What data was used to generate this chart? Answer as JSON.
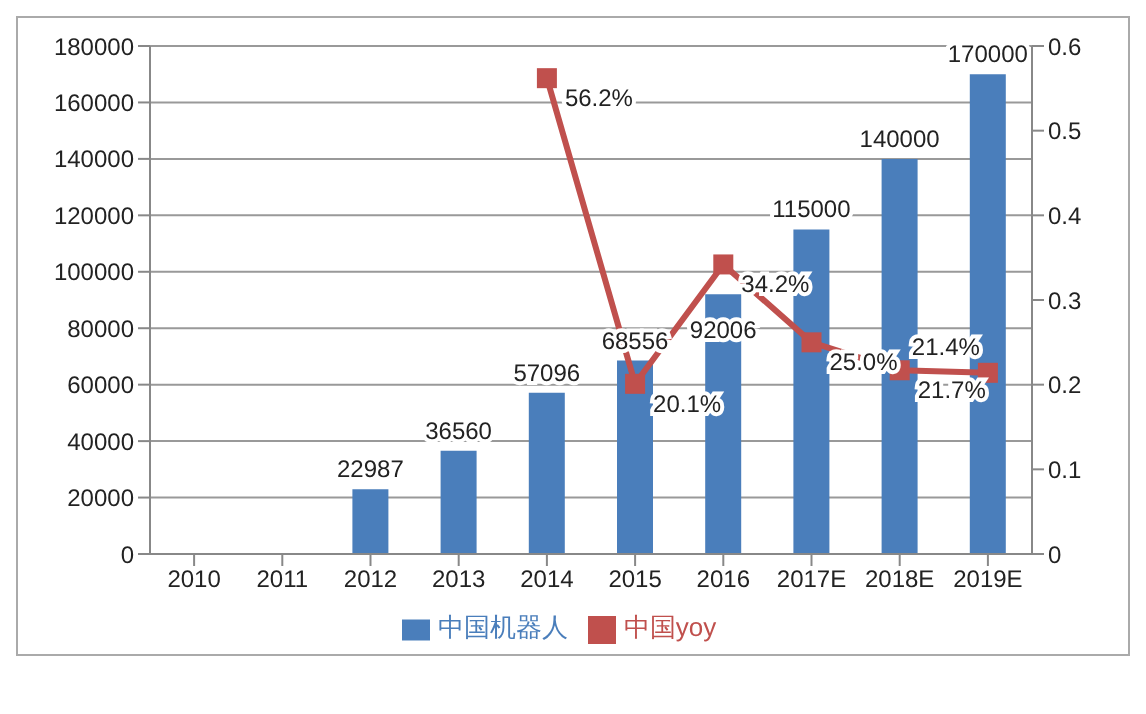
{
  "chart_data": {
    "type": "bar",
    "categories": [
      "2010",
      "2011",
      "2012",
      "2013",
      "2014",
      "2015",
      "2016",
      "2017E",
      "2018E",
      "2019E"
    ],
    "series": [
      {
        "name": "中国机器人",
        "type": "bar",
        "color": "#4a7ebb",
        "values": [
          null,
          null,
          22987,
          36560,
          57096,
          68556,
          92006,
          115000,
          140000,
          170000
        ]
      },
      {
        "name": "中国yoy",
        "type": "line",
        "axis": "y2",
        "color": "#c0504d",
        "marker": "square",
        "values": [
          null,
          null,
          null,
          null,
          0.562,
          0.201,
          0.342,
          0.25,
          0.217,
          0.214
        ],
        "value_labels": [
          null,
          null,
          null,
          null,
          "56.2%",
          "20.1%",
          "34.2%",
          "25.0%",
          "21.7%",
          "21.4%"
        ]
      }
    ],
    "data_labels": true,
    "ylim": [
      0,
      180000
    ],
    "yticks": [
      0,
      20000,
      40000,
      60000,
      80000,
      100000,
      120000,
      140000,
      160000,
      180000
    ],
    "y2lim": [
      0,
      0.6
    ],
    "y2ticks": [
      0,
      0.1,
      0.2,
      0.3,
      0.4,
      0.5,
      0.6
    ],
    "grid": "y",
    "legend": "bottom"
  }
}
